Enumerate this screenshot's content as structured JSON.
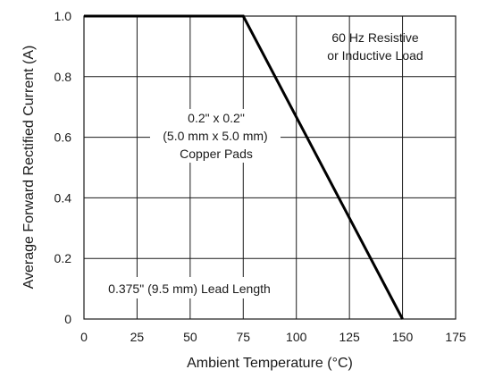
{
  "chart_data": {
    "type": "line",
    "xlabel": "Ambient Temperature (°C)",
    "ylabel": "Average Forward Rectified Current (A)",
    "xlim": [
      0,
      175
    ],
    "ylim": [
      0,
      1.0
    ],
    "x_ticks": [
      "0",
      "25",
      "50",
      "75",
      "100",
      "125",
      "150",
      "175"
    ],
    "y_ticks": [
      "0",
      "0.2",
      "0.4",
      "0.6",
      "0.8",
      "1.0"
    ],
    "grid": true,
    "series": [
      {
        "x": [
          0,
          75,
          150
        ],
        "y": [
          1.0,
          1.0,
          0
        ]
      }
    ],
    "annotations": {
      "load": [
        "60 Hz Resistive",
        "or Inductive Load"
      ],
      "pads": [
        "0.2\" x 0.2\"",
        "(5.0 mm x 5.0 mm)",
        "Copper Pads"
      ],
      "lead": "0.375\" (9.5 mm) Lead Length"
    },
    "colors": {
      "line": "#000000",
      "grid": "#1a1a1a",
      "text": "#1a1a1a"
    }
  }
}
